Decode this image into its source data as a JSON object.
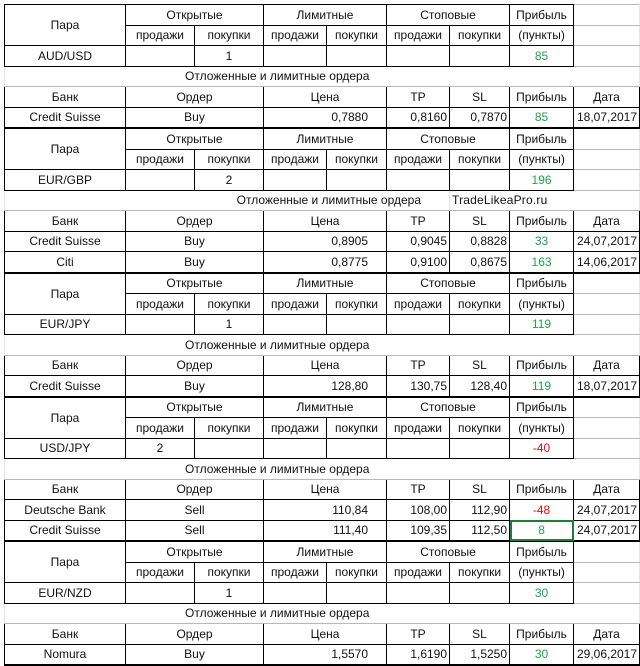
{
  "headers": {
    "pair": "Пара",
    "open": "Открытые",
    "limit": "Лимитные",
    "stop": "Стоповые",
    "profit": "Прибыль",
    "sells": "продажи",
    "buys": "покупки",
    "points": "(пункты)",
    "pending": "Отложенные и лимитные ордера",
    "bank": "Банк",
    "order": "Ордер",
    "price": "Цена",
    "tp": "TP",
    "sl": "SL",
    "date": "Дата"
  },
  "watermark": "TradeLikeaPro.ru",
  "blocks": [
    {
      "pair": "AUD/USD",
      "open_sell": "",
      "open_buy": "1",
      "limit_sell": "",
      "limit_buy": "",
      "stop_sell": "",
      "stop_buy": "",
      "profit": "85",
      "profit_color": "green",
      "orders": [
        {
          "bank": "Credit Suisse",
          "order": "Buy",
          "price": "0,7880",
          "tp": "0,8160",
          "sl": "0,7870",
          "profit": "85",
          "profit_color": "green",
          "date": "18,07,2017"
        }
      ]
    },
    {
      "pair": "EUR/GBP",
      "open_sell": "",
      "open_buy": "2",
      "limit_sell": "",
      "limit_buy": "",
      "stop_sell": "",
      "stop_buy": "",
      "profit": "196",
      "profit_color": "green",
      "orders": [
        {
          "bank": "Credit Suisse",
          "order": "Buy",
          "price": "0,8905",
          "tp": "0,9045",
          "sl": "0,8828",
          "profit": "33",
          "profit_color": "green",
          "date": "24,07,2017"
        },
        {
          "bank": "Citi",
          "order": "Buy",
          "price": "0,8775",
          "tp": "0,9100",
          "sl": "0,8675",
          "profit": "163",
          "profit_color": "green",
          "date": "14,06,2017"
        }
      ]
    },
    {
      "pair": "EUR/JPY",
      "open_sell": "",
      "open_buy": "1",
      "limit_sell": "",
      "limit_buy": "",
      "stop_sell": "",
      "stop_buy": "",
      "profit": "119",
      "profit_color": "green",
      "orders": [
        {
          "bank": "Credit Suisse",
          "order": "Buy",
          "price": "128,80",
          "tp": "130,75",
          "sl": "128,40",
          "profit": "119",
          "profit_color": "green",
          "date": "18,07,2017"
        }
      ]
    },
    {
      "pair": "USD/JPY",
      "open_sell": "2",
      "open_buy": "",
      "limit_sell": "",
      "limit_buy": "",
      "stop_sell": "",
      "stop_buy": "",
      "profit": "-40",
      "profit_color": "red",
      "orders": [
        {
          "bank": "Deutsche Bank",
          "order": "Sell",
          "price": "110,84",
          "tp": "108,00",
          "sl": "112,90",
          "profit": "-48",
          "profit_color": "red",
          "date": "24,07,2017"
        },
        {
          "bank": "Credit Suisse",
          "order": "Sell",
          "price": "111,40",
          "tp": "109,35",
          "sl": "112,50",
          "profit": "8",
          "profit_color": "green",
          "date": "24,07,2017"
        }
      ]
    },
    {
      "pair": "EUR/NZD",
      "open_sell": "",
      "open_buy": "1",
      "limit_sell": "",
      "limit_buy": "",
      "stop_sell": "",
      "stop_buy": "",
      "profit": "30",
      "profit_color": "green",
      "orders": [
        {
          "bank": "Nomura",
          "order": "Buy",
          "price": "1,5570",
          "tp": "1,6190",
          "sl": "1,5250",
          "profit": "30",
          "profit_color": "green",
          "date": "29,06,2017"
        }
      ]
    }
  ],
  "colors": {
    "positive": "#1ea34a",
    "negative": "#e01010",
    "selection": "#1a7f3c"
  }
}
